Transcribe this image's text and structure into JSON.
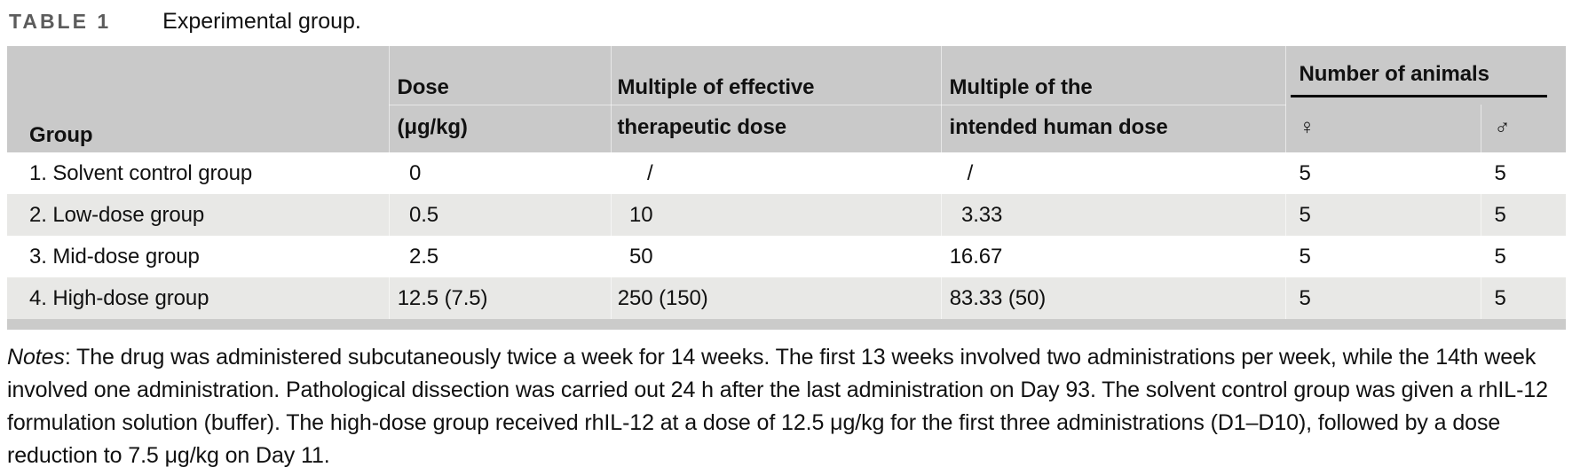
{
  "title": {
    "label": "TABLE 1",
    "caption": "Experimental group."
  },
  "table": {
    "header": {
      "group": "Group",
      "dose_line1": "Dose",
      "dose_line2": "(μg/kg)",
      "eff_line1": "Multiple of effective",
      "eff_line2": "therapeutic dose",
      "human_line1": "Multiple of the",
      "human_line2": "intended human dose",
      "animals": "Number of animals",
      "female_symbol": "♀",
      "male_symbol": "♂"
    },
    "rows": [
      {
        "group": "1. Solvent control group",
        "dose": "0",
        "mult_eff": "/",
        "mult_human": "/",
        "female": "5",
        "male": "5"
      },
      {
        "group": "2. Low-dose group",
        "dose": "0.5",
        "mult_eff": "10",
        "mult_human": "3.33",
        "female": "5",
        "male": "5"
      },
      {
        "group": "3. Mid-dose group",
        "dose": "2.5",
        "mult_eff": "50",
        "mult_human": "16.67",
        "female": "5",
        "male": "5"
      },
      {
        "group": "4. High-dose group",
        "dose": "12.5 (7.5)",
        "mult_eff": "250 (150)",
        "mult_human": "83.33 (50)",
        "female": "5",
        "male": "5"
      }
    ]
  },
  "notes": {
    "label": "Notes",
    "text": ": The drug was administered subcutaneously twice a week for 14 weeks. The first 13 weeks involved two administrations per week, while the 14th week involved one administration. Pathological dissection was carried out 24 h after the last administration on Day 93. The solvent control group was given a rhIL-12 formulation solution (buffer). The high-dose group received rhIL-12 at a dose of 12.5 μg/kg for the first three administrations (D1–D10), followed by a dose reduction to 7.5 μg/kg on Day 11."
  },
  "colors": {
    "header_bg": "#c9c9c9",
    "alt_row_bg": "#e8e8e6",
    "bottom_bar": "#cbcbca",
    "title_label": "#5c5c5c",
    "rule": "#000000"
  }
}
